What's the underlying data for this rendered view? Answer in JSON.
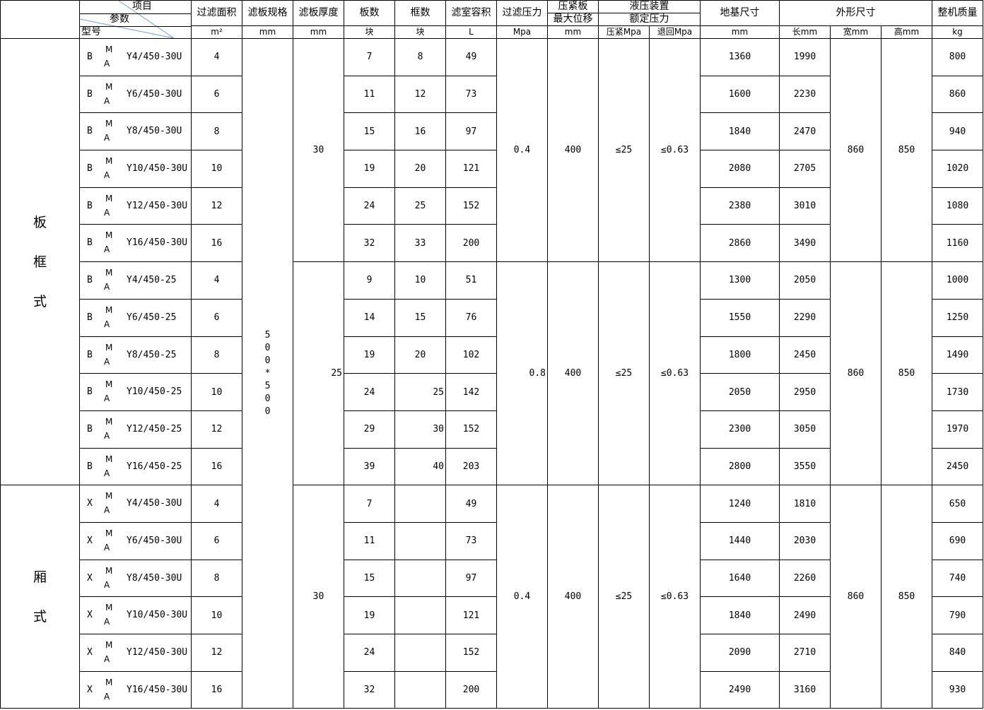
{
  "header": {
    "corner": {
      "item": "项目",
      "param": "参数",
      "model": "型号"
    },
    "columns": {
      "area": "过滤面积",
      "spec": "滤板规格",
      "thickness": "滤板厚度",
      "plates": "板数",
      "frames": "框数",
      "volume": "滤室容积",
      "pressure": "过滤压力",
      "disp_top": "压紧板",
      "disp_bottom": "最大位移",
      "hyd_top": "液压装置",
      "hyd_bottom": "额定压力",
      "foundation": "地基尺寸",
      "outline": "外形尺寸",
      "weight": "整机质量"
    },
    "units": {
      "area": "m²",
      "spec": "mm",
      "thickness": "mm",
      "plates": "块",
      "frames": "块",
      "volume": "L",
      "pressure": "Mpa",
      "disp": "mm",
      "press": "压紧Mpa",
      "ret": "退回Mpa",
      "foundation": "mm",
      "length": "长mm",
      "width": "宽mm",
      "height": "高mm",
      "weight": "kg"
    }
  },
  "categories": [
    {
      "label": [
        "板",
        "框",
        "式"
      ],
      "rows": 12
    },
    {
      "label": [
        "厢",
        "式"
      ],
      "rows": 6
    }
  ],
  "spec_value": [
    "5",
    "0",
    "0",
    "*",
    "5",
    "0",
    "0"
  ],
  "model_mid": {
    "top": "M",
    "bottom": "A"
  },
  "sections": [
    {
      "thickness": "30",
      "pressure": "0.4",
      "disp": "400",
      "press": "≤25",
      "ret": "≤0.63",
      "width": "860",
      "height": "850",
      "rows": [
        {
          "pre": "B",
          "model": "Y4/450-30U",
          "area": "4",
          "plates": "7",
          "frames": "8",
          "volume": "49",
          "foundation": "1360",
          "length": "1990",
          "weight": "800"
        },
        {
          "pre": "B",
          "model": "Y6/450-30U",
          "area": "6",
          "plates": "11",
          "frames": "12",
          "volume": "73",
          "foundation": "1600",
          "length": "2230",
          "weight": "860"
        },
        {
          "pre": "B",
          "model": "Y8/450-30U",
          "area": "8",
          "plates": "15",
          "frames": "16",
          "volume": "97",
          "foundation": "1840",
          "length": "2470",
          "weight": "940"
        },
        {
          "pre": "B",
          "model": "Y10/450-30U",
          "area": "10",
          "plates": "19",
          "frames": "20",
          "volume": "121",
          "foundation": "2080",
          "length": "2705",
          "weight": "1020"
        },
        {
          "pre": "B",
          "model": "Y12/450-30U",
          "area": "12",
          "plates": "24",
          "frames": "25",
          "volume": "152",
          "foundation": "2380",
          "length": "3010",
          "weight": "1080"
        },
        {
          "pre": "B",
          "model": "Y16/450-30U",
          "area": "16",
          "plates": "32",
          "frames": "33",
          "volume": "200",
          "foundation": "2860",
          "length": "3490",
          "weight": "1160"
        }
      ]
    },
    {
      "thickness": "25",
      "pressure": "0.8",
      "disp": "400",
      "press": "≤25",
      "ret": "≤0.63",
      "width": "860",
      "height": "850",
      "rows": [
        {
          "pre": "B",
          "model": "Y4/450-25",
          "area": "4",
          "plates": "9",
          "frames": "10",
          "volume": "51",
          "foundation": "1300",
          "length": "2050",
          "weight": "1000"
        },
        {
          "pre": "B",
          "model": "Y6/450-25",
          "area": "6",
          "plates": "14",
          "frames": "15",
          "volume": "76",
          "foundation": "1550",
          "length": "2290",
          "weight": "1250"
        },
        {
          "pre": "B",
          "model": "Y8/450-25",
          "area": "8",
          "plates": "19",
          "frames": "20",
          "volume": "102",
          "foundation": "1800",
          "length": "2450",
          "weight": "1490"
        },
        {
          "pre": "B",
          "model": "Y10/450-25",
          "area": "10",
          "plates": "24",
          "frames": "25",
          "volume": "142",
          "foundation": "2050",
          "length": "2950",
          "weight": "1730"
        },
        {
          "pre": "B",
          "model": "Y12/450-25",
          "area": "12",
          "plates": "29",
          "frames": "30",
          "volume": "152",
          "foundation": "2300",
          "length": "3050",
          "weight": "1970"
        },
        {
          "pre": "B",
          "model": "Y16/450-25",
          "area": "16",
          "plates": "39",
          "frames": "40",
          "volume": "203",
          "foundation": "2800",
          "length": "3550",
          "weight": "2450"
        }
      ]
    },
    {
      "thickness": "30",
      "pressure": "0.4",
      "disp": "400",
      "press": "≤25",
      "ret": "≤0.63",
      "width": "860",
      "height": "850",
      "rows": [
        {
          "pre": "X",
          "model": "Y4/450-30U",
          "area": "4",
          "plates": "7",
          "frames": "",
          "volume": "49",
          "foundation": "1240",
          "length": "1810",
          "weight": "650"
        },
        {
          "pre": "X",
          "model": "Y6/450-30U",
          "area": "6",
          "plates": "11",
          "frames": "",
          "volume": "73",
          "foundation": "1440",
          "length": "2030",
          "weight": "690"
        },
        {
          "pre": "X",
          "model": "Y8/450-30U",
          "area": "8",
          "plates": "15",
          "frames": "",
          "volume": "97",
          "foundation": "1640",
          "length": "2260",
          "weight": "740"
        },
        {
          "pre": "X",
          "model": "Y10/450-30U",
          "area": "10",
          "plates": "19",
          "frames": "",
          "volume": "121",
          "foundation": "1840",
          "length": "2490",
          "weight": "790"
        },
        {
          "pre": "X",
          "model": "Y12/450-30U",
          "area": "12",
          "plates": "24",
          "frames": "",
          "volume": "152",
          "foundation": "2090",
          "length": "2710",
          "weight": "840"
        },
        {
          "pre": "X",
          "model": "Y16/450-30U",
          "area": "16",
          "plates": "32",
          "frames": "",
          "volume": "200",
          "foundation": "2490",
          "length": "3160",
          "weight": "930"
        }
      ]
    }
  ]
}
